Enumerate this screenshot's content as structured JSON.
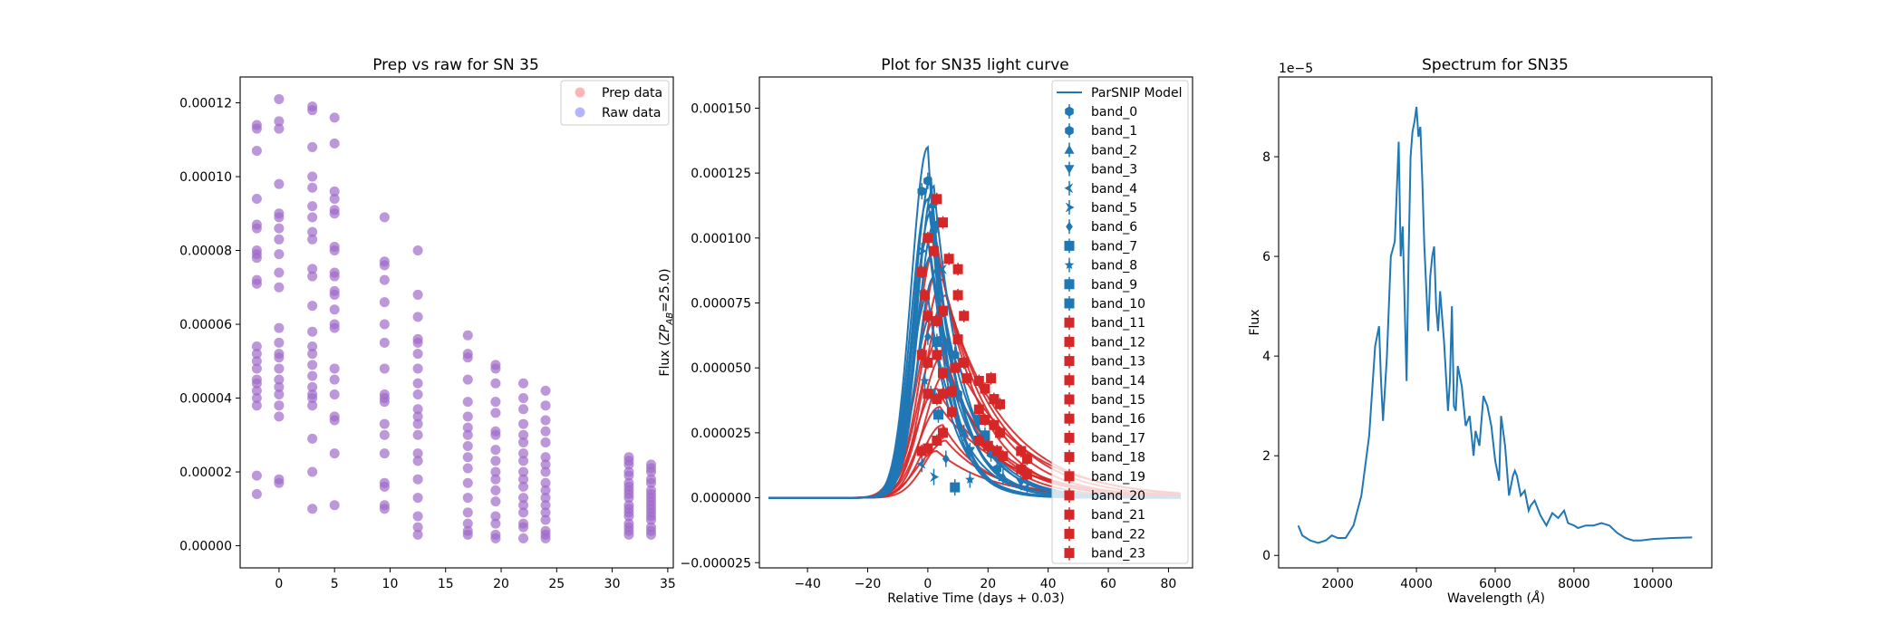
{
  "chart_data": [
    {
      "type": "scatter",
      "title": "Prep vs raw for SN 35",
      "xlabel": "",
      "ylabel": "",
      "xlim": [
        -3.5,
        35.5
      ],
      "ylim": [
        -6e-06,
        0.000127
      ],
      "xticks": [
        0,
        5,
        10,
        15,
        20,
        25,
        30,
        35
      ],
      "xtick_labels": [
        "0",
        "5",
        "10",
        "15",
        "20",
        "25",
        "30",
        "35"
      ],
      "yticks": [
        0,
        2e-05,
        4e-05,
        6e-05,
        8e-05,
        0.0001,
        0.00012
      ],
      "ytick_labels": [
        "0.00000",
        "0.00002",
        "0.00004",
        "0.00006",
        "0.00008",
        "0.00010",
        "0.00012"
      ],
      "legend_position": "top-right",
      "series": [
        {
          "name": "Prep data",
          "color": "#ff6b6b"
        },
        {
          "name": "Raw data",
          "color": "#6b6bff"
        }
      ],
      "points": [
        {
          "x": -2,
          "y": [
            0.000114,
            0.000113,
            0.000107,
            9.4e-05,
            8.7e-05,
            8.6e-05,
            8e-05,
            7.9e-05,
            7.8e-05,
            7.2e-05,
            7.1e-05,
            5.4e-05,
            5.2e-05,
            5e-05,
            4.8e-05,
            4.5e-05,
            4.4e-05,
            4.2e-05,
            4e-05,
            3.8e-05,
            1.9e-05,
            1.4e-05
          ]
        },
        {
          "x": 0,
          "y": [
            0.000121,
            0.000115,
            0.000113,
            9.8e-05,
            9e-05,
            8.9e-05,
            8.6e-05,
            8.3e-05,
            7.9e-05,
            7.4e-05,
            7e-05,
            5.9e-05,
            5.5e-05,
            5.2e-05,
            5.1e-05,
            4.8e-05,
            4.5e-05,
            4.3e-05,
            4.1e-05,
            3.8e-05,
            3.5e-05,
            1.8e-05,
            1.7e-05
          ]
        },
        {
          "x": 3,
          "y": [
            0.000119,
            0.000118,
            0.000108,
            0.0001,
            9.7e-05,
            9.2e-05,
            8.9e-05,
            8.5e-05,
            8.3e-05,
            7.5e-05,
            7.3e-05,
            6.5e-05,
            5.8e-05,
            5.4e-05,
            5.2e-05,
            4.9e-05,
            4.6e-05,
            4.3e-05,
            4.1e-05,
            4e-05,
            3.8e-05,
            2.9e-05,
            2e-05,
            1e-05
          ]
        },
        {
          "x": 5,
          "y": [
            0.000116,
            0.000109,
            9.6e-05,
            9.4e-05,
            9.1e-05,
            9e-05,
            8.1e-05,
            8e-05,
            7.4e-05,
            7.3e-05,
            6.9e-05,
            6.8e-05,
            6.4e-05,
            6e-05,
            5.9e-05,
            4.8e-05,
            4.5e-05,
            4.1e-05,
            3.5e-05,
            3.4e-05,
            2.5e-05,
            1.1e-05
          ]
        },
        {
          "x": 9.5,
          "y": [
            8.9e-05,
            7.7e-05,
            7.6e-05,
            7.2e-05,
            6.6e-05,
            6e-05,
            5.5e-05,
            4.8e-05,
            4.1e-05,
            4e-05,
            3.9e-05,
            3.3e-05,
            3e-05,
            2.5e-05,
            1.7e-05,
            1.6e-05,
            1.1e-05,
            1e-05
          ]
        },
        {
          "x": 12.5,
          "y": [
            8e-05,
            6.8e-05,
            6.2e-05,
            5.6e-05,
            5.5e-05,
            5.2e-05,
            4.8e-05,
            4.4e-05,
            4.1e-05,
            3.7e-05,
            3.5e-05,
            3.3e-05,
            3e-05,
            2.5e-05,
            2.3e-05,
            1.8e-05,
            1.3e-05,
            8e-06,
            5e-06,
            3e-06
          ]
        },
        {
          "x": 17,
          "y": [
            5.7e-05,
            5.2e-05,
            5.1e-05,
            4.5e-05,
            3.9e-05,
            3.5e-05,
            3.2e-05,
            3e-05,
            2.7e-05,
            2.4e-05,
            2.1e-05,
            1.7e-05,
            1.3e-05,
            9e-06,
            6e-06,
            4e-06,
            3e-06
          ]
        },
        {
          "x": 19.5,
          "y": [
            4.9e-05,
            4.8e-05,
            4.4e-05,
            3.9e-05,
            3.6e-05,
            3.1e-05,
            3e-05,
            2.6e-05,
            2.3e-05,
            2e-05,
            1.8e-05,
            1.5e-05,
            1.2e-05,
            8e-06,
            6e-06,
            3e-06,
            2e-06
          ]
        },
        {
          "x": 22,
          "y": [
            4.4e-05,
            4e-05,
            3.7e-05,
            3.3e-05,
            3e-05,
            2.8e-05,
            2.5e-05,
            2.3e-05,
            2e-05,
            1.8e-05,
            1.6e-05,
            1.3e-05,
            1.1e-05,
            9e-06,
            6e-06,
            5e-06,
            2e-06
          ]
        },
        {
          "x": 24,
          "y": [
            4.2e-05,
            3.8e-05,
            3.4e-05,
            3.1e-05,
            2.8e-05,
            2.4e-05,
            2.2e-05,
            2e-05,
            1.7e-05,
            1.5e-05,
            1.3e-05,
            1.1e-05,
            9e-06,
            7e-06,
            4e-06,
            3e-06,
            2e-06
          ]
        },
        {
          "x": 31.5,
          "y": [
            2.4e-05,
            2.3e-05,
            2.2e-05,
            2e-05,
            1.9e-05,
            1.7e-05,
            1.6e-05,
            1.5e-05,
            1.4e-05,
            1.3e-05,
            1.1e-05,
            1e-05,
            9e-06,
            8e-06,
            6e-06,
            5e-06,
            4e-06,
            3e-06
          ]
        },
        {
          "x": 33.5,
          "y": [
            2.2e-05,
            2.1e-05,
            2e-05,
            1.8e-05,
            1.7e-05,
            1.5e-05,
            1.4e-05,
            1.3e-05,
            1.2e-05,
            1.1e-05,
            1e-05,
            9e-06,
            8e-06,
            7e-06,
            5e-06,
            4e-06,
            3e-06
          ]
        }
      ]
    },
    {
      "type": "line",
      "title": "Plot for SN35 light curve",
      "xlabel": "Relative Time (days + 0.03)",
      "ylabel": "Flux (ZP_AB=25.0)",
      "ylabel_main": "Flux (",
      "ylabel_zp": "ZP",
      "ylabel_sub": "AB",
      "ylabel_tail": "=25.0)",
      "xlim": [
        -56,
        88
      ],
      "ylim": [
        -2.7e-05,
        0.000162
      ],
      "xticks": [
        -40,
        -20,
        0,
        20,
        40,
        60,
        80
      ],
      "xtick_labels": [
        "−40",
        "−20",
        "0",
        "20",
        "40",
        "60",
        "80"
      ],
      "yticks": [
        -2.5e-05,
        0,
        2.5e-05,
        5e-05,
        7.5e-05,
        0.0001,
        0.000125,
        0.00015
      ],
      "ytick_labels": [
        "−0.000025",
        "0.000000",
        "0.000025",
        "0.000050",
        "0.000075",
        "0.000100",
        "0.000125",
        "0.000150"
      ],
      "legend_position": "top-right",
      "model_label": "ParSNIP Model",
      "blue_color": "#1f77b4",
      "red_color": "#d62728",
      "bands": [
        "band_0",
        "band_1",
        "band_2",
        "band_3",
        "band_4",
        "band_5",
        "band_6",
        "band_7",
        "band_8",
        "band_9",
        "band_10",
        "band_11",
        "band_12",
        "band_13",
        "band_14",
        "band_15",
        "band_16",
        "band_17",
        "band_18",
        "band_19",
        "band_20",
        "band_21",
        "band_22",
        "band_23"
      ],
      "band_markers": [
        "hexagon",
        "hexagon",
        "triangle-up",
        "triangle-down",
        "tri-left",
        "tri-right",
        "diamond",
        "square",
        "star",
        "square",
        "square",
        "square",
        "square",
        "square",
        "square",
        "square",
        "square",
        "square",
        "square",
        "square",
        "square",
        "square",
        "square",
        "square"
      ],
      "blue_peaks": [
        0.000135,
        0.000123,
        0.00012,
        0.000115,
        0.00011,
        0.000105,
        0.0001,
        9.3e-05,
        8.5e-05,
        7.8e-05,
        7e-05
      ],
      "red_peaks": [
        9.8e-05,
        9e-05,
        8.4e-05,
        7.8e-05,
        7e-05,
        6.2e-05,
        5.5e-05,
        4.8e-05,
        4.2e-05,
        3.5e-05,
        2.8e-05,
        2.2e-05,
        1.8e-05
      ],
      "blue_points": [
        {
          "x": -2,
          "y": 0.000118
        },
        {
          "x": 0,
          "y": 0.000122
        },
        {
          "x": 1.5,
          "y": 0.000113
        },
        {
          "x": 3,
          "y": 0.000105
        },
        {
          "x": 5,
          "y": 8.8e-05
        },
        {
          "x": -2,
          "y": 9.5e-05
        },
        {
          "x": 0,
          "y": 6.2e-05
        },
        {
          "x": 3,
          "y": 6e-05
        },
        {
          "x": -1,
          "y": 4.5e-05
        },
        {
          "x": 1,
          "y": 4e-05
        },
        {
          "x": 3.5,
          "y": 3.2e-05
        },
        {
          "x": 9,
          "y": 5.5e-05
        },
        {
          "x": 10,
          "y": 4e-05
        },
        {
          "x": 12,
          "y": 2.5e-05
        },
        {
          "x": 14,
          "y": 1.8e-05
        },
        {
          "x": -2,
          "y": 1.3e-05
        },
        {
          "x": 2,
          "y": 8e-06
        },
        {
          "x": 6,
          "y": 1.5e-05
        },
        {
          "x": 9,
          "y": 4e-06
        },
        {
          "x": 14,
          "y": 7e-06
        },
        {
          "x": 17,
          "y": 3e-05
        },
        {
          "x": 19,
          "y": 2.4e-05
        },
        {
          "x": 21,
          "y": 1.7e-05
        },
        {
          "x": 23,
          "y": 1.1e-05
        },
        {
          "x": 25,
          "y": 8e-06
        },
        {
          "x": 31,
          "y": 6e-06
        },
        {
          "x": 33,
          "y": 4e-06
        }
      ],
      "red_points": [
        {
          "x": 3,
          "y": 0.000115
        },
        {
          "x": 5,
          "y": 0.000106
        },
        {
          "x": 0,
          "y": 0.0001
        },
        {
          "x": 2,
          "y": 9.5e-05
        },
        {
          "x": 7,
          "y": 9.2e-05
        },
        {
          "x": 10,
          "y": 8.8e-05
        },
        {
          "x": -2,
          "y": 8.7e-05
        },
        {
          "x": -1,
          "y": 7.8e-05
        },
        {
          "x": 0,
          "y": 7e-05
        },
        {
          "x": 3,
          "y": 6.8e-05
        },
        {
          "x": 5,
          "y": 7.2e-05
        },
        {
          "x": 10,
          "y": 7.8e-05
        },
        {
          "x": 12,
          "y": 7e-05
        },
        {
          "x": 10,
          "y": 6.1e-05
        },
        {
          "x": -2,
          "y": 5.5e-05
        },
        {
          "x": 0,
          "y": 5.2e-05
        },
        {
          "x": 3,
          "y": 5.5e-05
        },
        {
          "x": 5,
          "y": 4.8e-05
        },
        {
          "x": 9,
          "y": 5e-05
        },
        {
          "x": 12,
          "y": 5.2e-05
        },
        {
          "x": 13,
          "y": 4.6e-05
        },
        {
          "x": 17,
          "y": 4.5e-05
        },
        {
          "x": 19,
          "y": 4.2e-05
        },
        {
          "x": 21,
          "y": 4.6e-05
        },
        {
          "x": 22,
          "y": 3.8e-05
        },
        {
          "x": 24,
          "y": 3.6e-05
        },
        {
          "x": 17,
          "y": 3.4e-05
        },
        {
          "x": 19,
          "y": 3e-05
        },
        {
          "x": 22,
          "y": 2.8e-05
        },
        {
          "x": 24,
          "y": 2.5e-05
        },
        {
          "x": 17,
          "y": 2.2e-05
        },
        {
          "x": 20,
          "y": 2e-05
        },
        {
          "x": 23,
          "y": 1.8e-05
        },
        {
          "x": 25,
          "y": 1.6e-05
        },
        {
          "x": 31,
          "y": 1.8e-05
        },
        {
          "x": 33,
          "y": 1.5e-05
        },
        {
          "x": 31,
          "y": 1.1e-05
        },
        {
          "x": 33,
          "y": 9e-06
        },
        {
          "x": -2,
          "y": 1.8e-05
        },
        {
          "x": 0,
          "y": 1.9e-05
        },
        {
          "x": 3,
          "y": 2.2e-05
        },
        {
          "x": 5,
          "y": 2.5e-05
        },
        {
          "x": 8,
          "y": 3.3e-05
        },
        {
          "x": 0,
          "y": 4e-05
        },
        {
          "x": 3,
          "y": 3.8e-05
        },
        {
          "x": 5,
          "y": 4e-05
        },
        {
          "x": 8,
          "y": 4.1e-05
        }
      ]
    },
    {
      "type": "line",
      "title": "Spectrum for SN35",
      "xlabel": "Wavelength (Å)",
      "xlabel_main": "Wavelength (",
      "xlabel_unit": "Å",
      "xlabel_tail": ")",
      "ylabel": "Flux",
      "offset_text": "1e−5",
      "xlim": [
        500,
        11500
      ],
      "ylim": [
        -0.25,
        9.6
      ],
      "xticks": [
        2000,
        4000,
        6000,
        8000,
        10000
      ],
      "xtick_labels": [
        "2000",
        "4000",
        "6000",
        "8000",
        "10000"
      ],
      "yticks": [
        0,
        2,
        4,
        6,
        8
      ],
      "ytick_labels": [
        "0",
        "2",
        "4",
        "6",
        "8"
      ],
      "color": "#1f77b4",
      "x": [
        1000,
        1100,
        1300,
        1500,
        1700,
        1850,
        2000,
        2200,
        2400,
        2600,
        2800,
        2950,
        3050,
        3100,
        3150,
        3250,
        3350,
        3450,
        3550,
        3600,
        3650,
        3700,
        3750,
        3800,
        3850,
        3900,
        3950,
        4000,
        4050,
        4100,
        4150,
        4200,
        4300,
        4350,
        4400,
        4450,
        4500,
        4550,
        4600,
        4700,
        4800,
        4850,
        4900,
        4950,
        5000,
        5050,
        5150,
        5250,
        5350,
        5450,
        5500,
        5600,
        5700,
        5800,
        5900,
        6000,
        6100,
        6150,
        6250,
        6350,
        6450,
        6500,
        6550,
        6650,
        6750,
        6850,
        6900,
        7000,
        7150,
        7300,
        7450,
        7600,
        7750,
        7850,
        8000,
        8100,
        8300,
        8500,
        8700,
        8900,
        9100,
        9300,
        9500,
        9700,
        10000,
        10500,
        11000
      ],
      "y": [
        0.6,
        0.4,
        0.3,
        0.25,
        0.3,
        0.4,
        0.35,
        0.35,
        0.6,
        1.2,
        2.4,
        4.2,
        4.6,
        3.5,
        2.7,
        4.0,
        6.0,
        6.3,
        8.3,
        6.0,
        6.6,
        5.0,
        3.5,
        6.0,
        8.0,
        8.5,
        8.7,
        9.0,
        8.4,
        8.6,
        7.5,
        6.2,
        4.5,
        5.6,
        6.0,
        6.2,
        5.0,
        4.5,
        5.3,
        4.3,
        2.9,
        3.5,
        5.0,
        3.0,
        2.9,
        3.8,
        3.4,
        2.6,
        2.8,
        2.0,
        2.5,
        2.2,
        3.2,
        3.0,
        2.6,
        1.9,
        1.5,
        2.8,
        2.2,
        1.2,
        1.6,
        1.7,
        1.6,
        1.2,
        1.3,
        0.9,
        1.0,
        1.1,
        0.8,
        0.6,
        0.85,
        0.75,
        0.9,
        0.65,
        0.6,
        0.55,
        0.6,
        0.6,
        0.65,
        0.6,
        0.45,
        0.35,
        0.3,
        0.3,
        0.33,
        0.35,
        0.36
      ]
    }
  ]
}
